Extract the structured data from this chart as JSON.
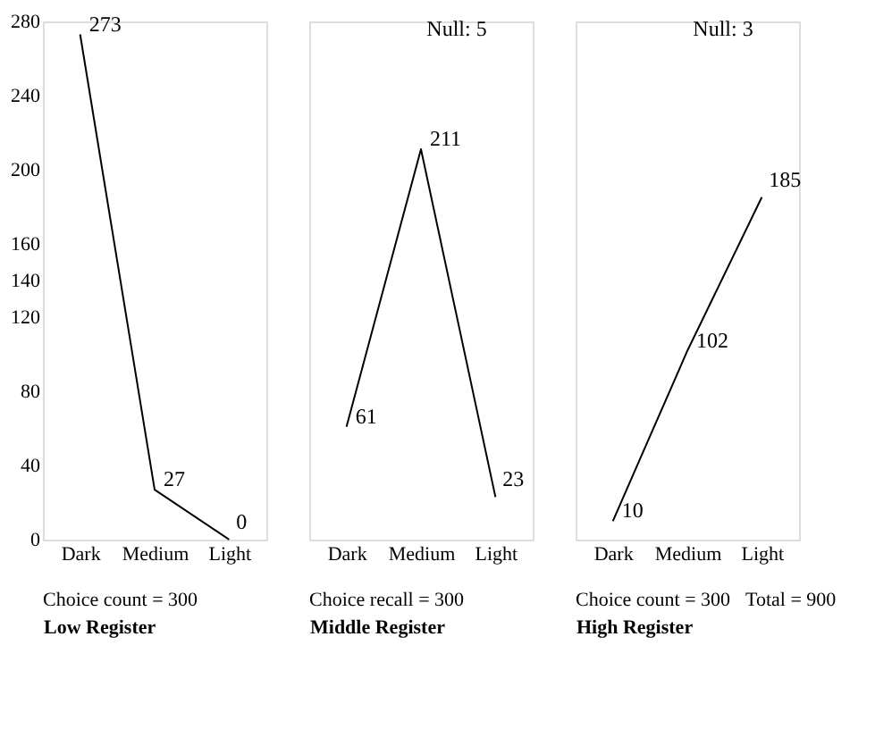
{
  "chart_data": [
    {
      "type": "line",
      "categories": [
        "Dark",
        "Medium",
        "Light"
      ],
      "values": [
        273,
        27,
        0
      ],
      "color": "#000000",
      "data_labels": true,
      "ylim": [
        0,
        280
      ],
      "yticks": [
        0,
        40,
        80,
        120,
        140,
        160,
        200,
        240,
        280
      ],
      "xlabel": "Low Register",
      "annotations": [
        "Choice count = 300"
      ],
      "marker": "none",
      "grid": false
    },
    {
      "type": "line",
      "title": "Null: 5",
      "categories": [
        "Dark",
        "Medium",
        "Light"
      ],
      "values": [
        61,
        211,
        23
      ],
      "color": "#000000",
      "data_labels": true,
      "ylim": [
        0,
        280
      ],
      "tick_labels": "x",
      "xlabel": "Middle Register",
      "annotations": [
        "Choice recall = 300"
      ],
      "marker": "none",
      "grid": false
    },
    {
      "type": "line",
      "title": "Null: 3",
      "categories": [
        "Dark",
        "Medium",
        "Light"
      ],
      "values": [
        10,
        102,
        185
      ],
      "color": "#000000",
      "data_labels": true,
      "ylim": [
        0,
        280
      ],
      "tick_labels": "x",
      "xlabel": "High Register",
      "annotations": [
        "Choice count = 300",
        "Total = 900"
      ],
      "marker": "none",
      "grid": false
    }
  ]
}
